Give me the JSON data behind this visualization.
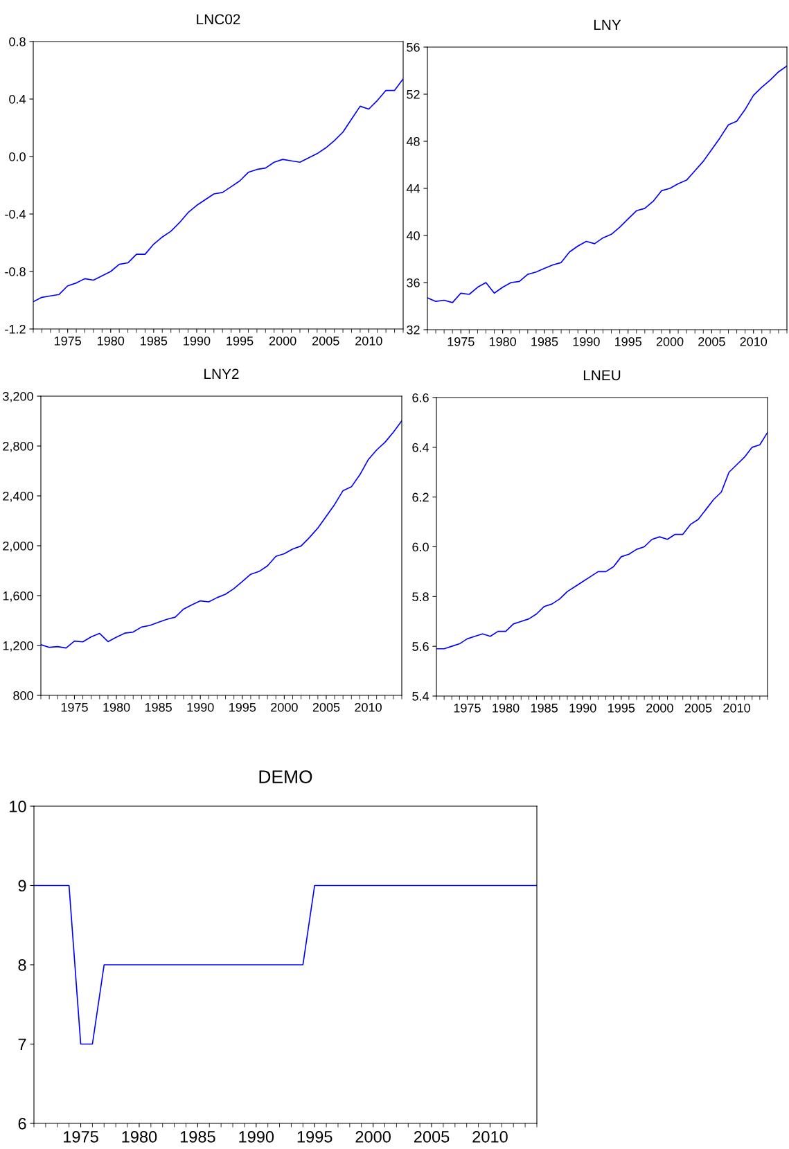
{
  "chart_data": [
    {
      "type": "line",
      "title": "LNC02",
      "color": "#0000ff",
      "xlim": [
        1971,
        2014
      ],
      "xticks": [
        1975,
        1980,
        1985,
        1990,
        1995,
        2000,
        2005,
        2010
      ],
      "ylim": [
        -1.2,
        0.8
      ],
      "yticks": [
        {
          "value": -1.2,
          "label": "-1.2"
        },
        {
          "value": -0.8,
          "label": "-0.8"
        },
        {
          "value": -0.4,
          "label": "-0.4"
        },
        {
          "value": 0,
          "label": "0.0"
        },
        {
          "value": 0.4,
          "label": "0.4"
        },
        {
          "value": 0.8,
          "label": "0.8"
        }
      ],
      "grid": false,
      "x": [
        1971,
        1972,
        1973,
        1974,
        1975,
        1976,
        1977,
        1978,
        1979,
        1980,
        1981,
        1982,
        1983,
        1984,
        1985,
        1986,
        1987,
        1988,
        1989,
        1990,
        1991,
        1992,
        1993,
        1994,
        1995,
        1996,
        1997,
        1998,
        1999,
        2000,
        2001,
        2002,
        2003,
        2004,
        2005,
        2006,
        2007,
        2008,
        2009,
        2010,
        2011,
        2012,
        2013,
        2014
      ],
      "values": [
        -1.01,
        -0.98,
        -0.97,
        -0.96,
        -0.9,
        -0.88,
        -0.85,
        -0.86,
        -0.83,
        -0.8,
        -0.75,
        -0.74,
        -0.68,
        -0.68,
        -0.61,
        -0.56,
        -0.52,
        -0.46,
        -0.39,
        -0.34,
        -0.3,
        -0.26,
        -0.25,
        -0.21,
        -0.17,
        -0.11,
        -0.09,
        -0.08,
        -0.04,
        -0.02,
        -0.03,
        -0.04,
        -0.01,
        0.02,
        0.06,
        0.11,
        0.17,
        0.26,
        0.35,
        0.33,
        0.39,
        0.46,
        0.46,
        0.54
      ]
    },
    {
      "type": "line",
      "title": "LNY",
      "color": "#0000ff",
      "xlim": [
        1971,
        2014
      ],
      "xticks": [
        1975,
        1980,
        1985,
        1990,
        1995,
        2000,
        2005,
        2010
      ],
      "ylim": [
        32,
        56
      ],
      "yticks": [
        32,
        36,
        40,
        44,
        48,
        52,
        56
      ],
      "grid": false,
      "x": [
        1971,
        1972,
        1973,
        1974,
        1975,
        1976,
        1977,
        1978,
        1979,
        1980,
        1981,
        1982,
        1983,
        1984,
        1985,
        1986,
        1987,
        1988,
        1989,
        1990,
        1991,
        1992,
        1993,
        1994,
        1995,
        1996,
        1997,
        1998,
        1999,
        2000,
        2001,
        2002,
        2003,
        2004,
        2005,
        2006,
        2007,
        2008,
        2009,
        2010,
        2011,
        2012,
        2013,
        2014
      ],
      "values": [
        34.7,
        34.4,
        34.5,
        34.3,
        35.1,
        35.0,
        35.6,
        36.0,
        35.1,
        35.6,
        36.0,
        36.1,
        36.7,
        36.9,
        37.2,
        37.5,
        37.7,
        38.6,
        39.1,
        39.5,
        39.3,
        39.8,
        40.1,
        40.7,
        41.4,
        42.1,
        42.3,
        42.9,
        43.8,
        44.0,
        44.4,
        44.7,
        45.5,
        46.3,
        47.3,
        48.3,
        49.4,
        49.7,
        50.7,
        51.9,
        52.6,
        53.2,
        53.9,
        54.4
      ]
    },
    {
      "type": "line",
      "title": "LNY2",
      "color": "#0000ff",
      "xlim": [
        1971,
        2014
      ],
      "xticks": [
        1975,
        1980,
        1985,
        1990,
        1995,
        2000,
        2005,
        2010
      ],
      "ylim": [
        800,
        3200
      ],
      "yticks": [
        {
          "value": 800,
          "label": "800"
        },
        {
          "value": 1200,
          "label": "1,200"
        },
        {
          "value": 1600,
          "label": "1,600"
        },
        {
          "value": 2000,
          "label": "2,000"
        },
        {
          "value": 2400,
          "label": "2,400"
        },
        {
          "value": 2800,
          "label": "2,800"
        },
        {
          "value": 3200,
          "label": "3,200"
        }
      ],
      "grid": false,
      "x": [
        1971,
        1972,
        1973,
        1974,
        1975,
        1976,
        1977,
        1978,
        1979,
        1980,
        1981,
        1982,
        1983,
        1984,
        1985,
        1986,
        1987,
        1988,
        1989,
        1990,
        1991,
        1992,
        1993,
        1994,
        1995,
        1996,
        1997,
        1998,
        1999,
        2000,
        2001,
        2002,
        2003,
        2004,
        2005,
        2006,
        2007,
        2008,
        2009,
        2010,
        2011,
        2012,
        2013,
        2014
      ],
      "values": [
        1206,
        1185,
        1191,
        1180,
        1235,
        1229,
        1269,
        1297,
        1231,
        1267,
        1299,
        1308,
        1348,
        1361,
        1386,
        1410,
        1427,
        1492,
        1526,
        1558,
        1550,
        1584,
        1611,
        1656,
        1713,
        1771,
        1794,
        1839,
        1915,
        1936,
        1974,
        1998,
        2066,
        2142,
        2236,
        2331,
        2442,
        2473,
        2569,
        2690,
        2768,
        2830,
        2911,
        3002
      ]
    },
    {
      "type": "line",
      "title": "LNEU",
      "color": "#0000ff",
      "xlim": [
        1971,
        2014
      ],
      "xticks": [
        1975,
        1980,
        1985,
        1990,
        1995,
        2000,
        2005,
        2010
      ],
      "ylim": [
        5.4,
        6.6
      ],
      "yticks": [
        5.4,
        5.6,
        5.8,
        {
          "value": 6.0,
          "label": "6.0"
        },
        6.2,
        6.4,
        6.6
      ],
      "grid": false,
      "x": [
        1971,
        1972,
        1973,
        1974,
        1975,
        1976,
        1977,
        1978,
        1979,
        1980,
        1981,
        1982,
        1983,
        1984,
        1985,
        1986,
        1987,
        1988,
        1989,
        1990,
        1991,
        1992,
        1993,
        1994,
        1995,
        1996,
        1997,
        1998,
        1999,
        2000,
        2001,
        2002,
        2003,
        2004,
        2005,
        2006,
        2007,
        2008,
        2009,
        2010,
        2011,
        2012,
        2013,
        2014
      ],
      "values": [
        5.59,
        5.59,
        5.6,
        5.61,
        5.63,
        5.64,
        5.65,
        5.64,
        5.66,
        5.66,
        5.69,
        5.7,
        5.71,
        5.73,
        5.76,
        5.77,
        5.79,
        5.82,
        5.84,
        5.86,
        5.88,
        5.9,
        5.9,
        5.92,
        5.96,
        5.97,
        5.99,
        6.0,
        6.03,
        6.04,
        6.03,
        6.05,
        6.05,
        6.09,
        6.11,
        6.15,
        6.19,
        6.22,
        6.3,
        6.33,
        6.36,
        6.4,
        6.41,
        6.46
      ]
    },
    {
      "type": "line",
      "title": "DEMO",
      "color": "#0000ff",
      "xlim": [
        1971,
        2014
      ],
      "xticks": [
        1975,
        1980,
        1985,
        1990,
        1995,
        2000,
        2005,
        2010
      ],
      "ylim": [
        6,
        10
      ],
      "yticks": [
        6,
        7,
        8,
        9,
        10
      ],
      "grid": false,
      "x": [
        1971,
        1972,
        1973,
        1974,
        1975,
        1976,
        1977,
        1978,
        1979,
        1980,
        1981,
        1982,
        1983,
        1984,
        1985,
        1986,
        1987,
        1988,
        1989,
        1990,
        1991,
        1992,
        1993,
        1994,
        1995,
        1996,
        1997,
        1998,
        1999,
        2000,
        2001,
        2002,
        2003,
        2004,
        2005,
        2006,
        2007,
        2008,
        2009,
        2010,
        2011,
        2012,
        2013,
        2014
      ],
      "values": [
        9,
        9,
        9,
        9,
        7,
        7,
        8,
        8,
        8,
        8,
        8,
        8,
        8,
        8,
        8,
        8,
        8,
        8,
        8,
        8,
        8,
        8,
        8,
        8,
        9,
        9,
        9,
        9,
        9,
        9,
        9,
        9,
        9,
        9,
        9,
        9,
        9,
        9,
        9,
        9,
        9,
        9,
        9,
        9
      ]
    }
  ]
}
